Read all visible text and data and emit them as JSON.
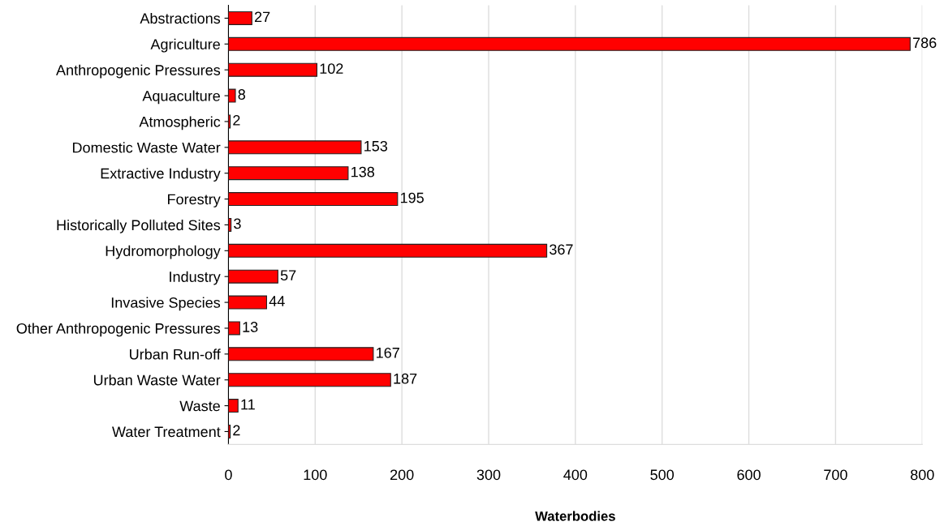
{
  "chart_data": {
    "type": "bar",
    "orientation": "horizontal",
    "xlabel": "Waterbodies",
    "categories": [
      "Abstractions",
      "Agriculture",
      "Anthropogenic Pressures",
      "Aquaculture",
      "Atmospheric",
      "Domestic Waste Water",
      "Extractive Industry",
      "Forestry",
      "Historically Polluted Sites",
      "Hydromorphology",
      "Industry",
      "Invasive Species",
      "Other Anthropogenic Pressures",
      "Urban Run-off",
      "Urban Waste Water",
      "Waste",
      "Water Treatment"
    ],
    "values": [
      27,
      786,
      102,
      8,
      2,
      153,
      138,
      195,
      3,
      367,
      57,
      44,
      13,
      167,
      187,
      11,
      2
    ],
    "color": "#ff0000",
    "data_labels": true,
    "grid": "x",
    "xlim": [
      0,
      800
    ],
    "xticks": [
      0,
      100,
      200,
      300,
      400,
      500,
      600,
      700,
      800
    ]
  }
}
